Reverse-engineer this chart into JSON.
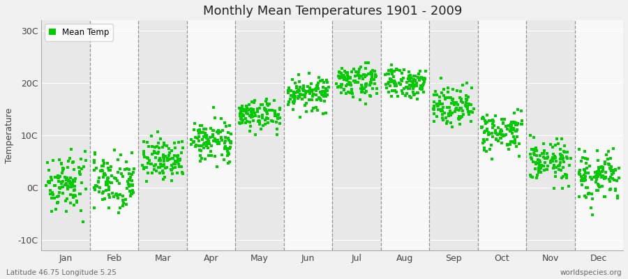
{
  "title": "Monthly Mean Temperatures 1901 - 2009",
  "ylabel": "Temperature",
  "xlabel_labels": [
    "Jan",
    "Feb",
    "Mar",
    "Apr",
    "May",
    "Jun",
    "Jul",
    "Aug",
    "Sep",
    "Oct",
    "Nov",
    "Dec"
  ],
  "ytick_labels": [
    "-10C",
    "0C",
    "10C",
    "20C",
    "30C"
  ],
  "ytick_values": [
    -10,
    0,
    10,
    20,
    30
  ],
  "ylim": [
    -12,
    32
  ],
  "xlim": [
    0,
    12
  ],
  "background_color": "#f0f0f0",
  "plot_bg_light": "#f8f8f8",
  "plot_bg_dark": "#e8e8e8",
  "dot_color": "#00cc00",
  "dot_size": 5,
  "legend_label": "Mean Temp",
  "bottom_left_text": "Latitude 46.75 Longitude 5.25",
  "bottom_right_text": "worldspecies.org",
  "n_years": 109,
  "monthly_means": [
    1.0,
    1.5,
    5.5,
    9.0,
    14.0,
    18.0,
    20.5,
    20.0,
    16.0,
    10.5,
    5.0,
    2.0
  ],
  "monthly_stds": [
    2.8,
    2.8,
    2.0,
    1.8,
    1.6,
    1.6,
    1.5,
    1.5,
    1.8,
    2.0,
    2.0,
    2.5
  ]
}
